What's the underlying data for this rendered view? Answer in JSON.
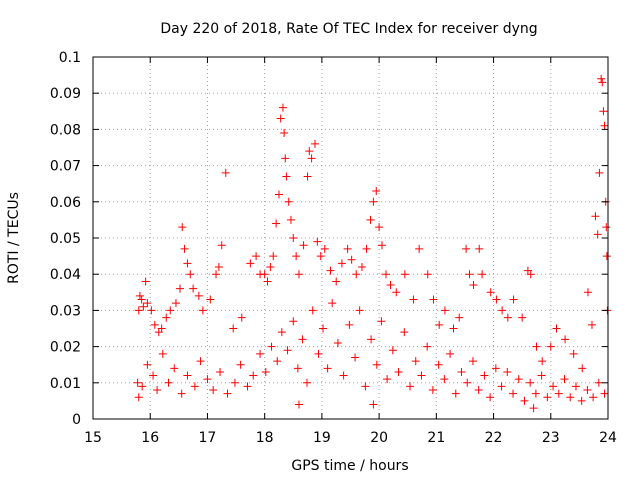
{
  "chart_data": {
    "type": "scatter",
    "title": "Day 220 of 2018, Rate Of TEC Index for receiver dyng",
    "xlabel": "GPS time / hours",
    "ylabel": "ROTI / TECUs",
    "xlim": [
      15,
      24
    ],
    "ylim": [
      0,
      0.1
    ],
    "x_ticks": [
      "15",
      "16",
      "17",
      "18",
      "19",
      "20",
      "21",
      "22",
      "23",
      "24"
    ],
    "y_ticks": [
      "0",
      "0.01",
      "0.02",
      "0.03",
      "0.04",
      "0.05",
      "0.06",
      "0.07",
      "0.08",
      "0.09",
      "0.1"
    ],
    "grid": true,
    "marker": "plus",
    "colors": {
      "series": "#ff0000",
      "grid": "#a0a0a0"
    },
    "series": [
      {
        "name": "",
        "points": [
          [
            15.78,
            0.01
          ],
          [
            15.8,
            0.03
          ],
          [
            15.82,
            0.034
          ],
          [
            15.85,
            0.033
          ],
          [
            15.88,
            0.031
          ],
          [
            15.92,
            0.038
          ],
          [
            15.95,
            0.032
          ],
          [
            16.02,
            0.03
          ],
          [
            16.08,
            0.026
          ],
          [
            16.15,
            0.024
          ],
          [
            16.2,
            0.025
          ],
          [
            16.28,
            0.028
          ],
          [
            16.35,
            0.03
          ],
          [
            16.45,
            0.032
          ],
          [
            16.52,
            0.036
          ],
          [
            16.56,
            0.053
          ],
          [
            16.6,
            0.047
          ],
          [
            16.65,
            0.043
          ],
          [
            16.7,
            0.04
          ],
          [
            16.75,
            0.036
          ],
          [
            16.85,
            0.034
          ],
          [
            16.92,
            0.03
          ],
          [
            17.05,
            0.033
          ],
          [
            17.15,
            0.04
          ],
          [
            17.2,
            0.042
          ],
          [
            17.25,
            0.048
          ],
          [
            17.32,
            0.068
          ],
          [
            17.45,
            0.025
          ],
          [
            17.6,
            0.028
          ],
          [
            17.75,
            0.043
          ],
          [
            17.85,
            0.045
          ],
          [
            17.92,
            0.04
          ],
          [
            18.0,
            0.04
          ],
          [
            18.05,
            0.038
          ],
          [
            18.1,
            0.042
          ],
          [
            18.15,
            0.045
          ],
          [
            18.2,
            0.054
          ],
          [
            18.25,
            0.062
          ],
          [
            18.28,
            0.083
          ],
          [
            18.32,
            0.086
          ],
          [
            18.34,
            0.079
          ],
          [
            18.36,
            0.072
          ],
          [
            18.38,
            0.067
          ],
          [
            18.42,
            0.06
          ],
          [
            18.46,
            0.055
          ],
          [
            18.5,
            0.05
          ],
          [
            18.55,
            0.045
          ],
          [
            18.6,
            0.04
          ],
          [
            18.68,
            0.048
          ],
          [
            18.75,
            0.067
          ],
          [
            18.78,
            0.074
          ],
          [
            18.82,
            0.072
          ],
          [
            18.88,
            0.076
          ],
          [
            18.92,
            0.049
          ],
          [
            18.98,
            0.045
          ],
          [
            19.05,
            0.047
          ],
          [
            19.15,
            0.041
          ],
          [
            19.25,
            0.038
          ],
          [
            19.35,
            0.043
          ],
          [
            19.45,
            0.047
          ],
          [
            19.52,
            0.044
          ],
          [
            19.6,
            0.04
          ],
          [
            19.7,
            0.042
          ],
          [
            19.78,
            0.047
          ],
          [
            19.85,
            0.055
          ],
          [
            19.9,
            0.06
          ],
          [
            19.95,
            0.063
          ],
          [
            20.0,
            0.053
          ],
          [
            20.05,
            0.048
          ],
          [
            20.12,
            0.04
          ],
          [
            20.2,
            0.037
          ],
          [
            20.3,
            0.035
          ],
          [
            20.45,
            0.04
          ],
          [
            20.6,
            0.033
          ],
          [
            20.7,
            0.047
          ],
          [
            20.85,
            0.04
          ],
          [
            20.95,
            0.033
          ],
          [
            21.05,
            0.026
          ],
          [
            21.15,
            0.03
          ],
          [
            21.3,
            0.025
          ],
          [
            21.4,
            0.028
          ],
          [
            21.52,
            0.047
          ],
          [
            21.58,
            0.04
          ],
          [
            21.65,
            0.037
          ],
          [
            21.75,
            0.047
          ],
          [
            21.8,
            0.04
          ],
          [
            21.95,
            0.035
          ],
          [
            22.05,
            0.033
          ],
          [
            22.15,
            0.03
          ],
          [
            22.25,
            0.028
          ],
          [
            22.35,
            0.033
          ],
          [
            22.5,
            0.028
          ],
          [
            22.6,
            0.041
          ],
          [
            22.65,
            0.04
          ],
          [
            22.75,
            0.02
          ],
          [
            22.85,
            0.016
          ],
          [
            23.0,
            0.02
          ],
          [
            23.1,
            0.025
          ],
          [
            23.25,
            0.022
          ],
          [
            23.4,
            0.018
          ],
          [
            23.55,
            0.014
          ],
          [
            23.65,
            0.035
          ],
          [
            23.72,
            0.026
          ],
          [
            23.78,
            0.056
          ],
          [
            23.82,
            0.051
          ],
          [
            23.85,
            0.068
          ],
          [
            23.88,
            0.094
          ],
          [
            23.9,
            0.093
          ],
          [
            23.92,
            0.085
          ],
          [
            23.94,
            0.081
          ],
          [
            23.96,
            0.06
          ],
          [
            23.97,
            0.053
          ],
          [
            23.98,
            0.045
          ],
          [
            23.99,
            0.03
          ],
          [
            15.8,
            0.006
          ],
          [
            15.86,
            0.009
          ],
          [
            15.95,
            0.015
          ],
          [
            16.05,
            0.012
          ],
          [
            16.12,
            0.008
          ],
          [
            16.22,
            0.018
          ],
          [
            16.32,
            0.01
          ],
          [
            16.42,
            0.014
          ],
          [
            16.55,
            0.007
          ],
          [
            16.65,
            0.012
          ],
          [
            16.78,
            0.009
          ],
          [
            16.88,
            0.016
          ],
          [
            17.0,
            0.011
          ],
          [
            17.1,
            0.008
          ],
          [
            17.22,
            0.013
          ],
          [
            17.35,
            0.007
          ],
          [
            17.48,
            0.01
          ],
          [
            17.58,
            0.015
          ],
          [
            17.7,
            0.009
          ],
          [
            17.8,
            0.012
          ],
          [
            17.92,
            0.018
          ],
          [
            18.02,
            0.013
          ],
          [
            18.12,
            0.02
          ],
          [
            18.22,
            0.016
          ],
          [
            18.3,
            0.024
          ],
          [
            18.4,
            0.019
          ],
          [
            18.5,
            0.027
          ],
          [
            18.58,
            0.014
          ],
          [
            18.66,
            0.022
          ],
          [
            18.74,
            0.01
          ],
          [
            18.84,
            0.03
          ],
          [
            18.94,
            0.018
          ],
          [
            19.02,
            0.025
          ],
          [
            19.1,
            0.014
          ],
          [
            19.18,
            0.032
          ],
          [
            19.28,
            0.021
          ],
          [
            19.38,
            0.012
          ],
          [
            19.48,
            0.026
          ],
          [
            19.58,
            0.017
          ],
          [
            19.66,
            0.03
          ],
          [
            19.76,
            0.009
          ],
          [
            19.86,
            0.022
          ],
          [
            19.96,
            0.015
          ],
          [
            20.04,
            0.027
          ],
          [
            20.14,
            0.011
          ],
          [
            20.24,
            0.019
          ],
          [
            20.34,
            0.013
          ],
          [
            20.44,
            0.024
          ],
          [
            20.54,
            0.009
          ],
          [
            20.64,
            0.016
          ],
          [
            20.74,
            0.012
          ],
          [
            20.84,
            0.02
          ],
          [
            20.94,
            0.008
          ],
          [
            21.04,
            0.015
          ],
          [
            21.14,
            0.011
          ],
          [
            21.24,
            0.018
          ],
          [
            21.34,
            0.007
          ],
          [
            21.44,
            0.013
          ],
          [
            21.54,
            0.01
          ],
          [
            21.64,
            0.016
          ],
          [
            21.74,
            0.008
          ],
          [
            21.84,
            0.012
          ],
          [
            21.94,
            0.006
          ],
          [
            22.04,
            0.014
          ],
          [
            22.14,
            0.009
          ],
          [
            22.24,
            0.013
          ],
          [
            22.34,
            0.007
          ],
          [
            22.44,
            0.011
          ],
          [
            22.54,
            0.005
          ],
          [
            22.64,
            0.01
          ],
          [
            22.74,
            0.007
          ],
          [
            22.84,
            0.012
          ],
          [
            22.94,
            0.006
          ],
          [
            23.04,
            0.009
          ],
          [
            23.14,
            0.007
          ],
          [
            23.24,
            0.011
          ],
          [
            23.34,
            0.006
          ],
          [
            23.44,
            0.009
          ],
          [
            23.54,
            0.005
          ],
          [
            23.64,
            0.008
          ],
          [
            23.74,
            0.006
          ],
          [
            23.84,
            0.01
          ],
          [
            23.94,
            0.007
          ],
          [
            19.9,
            0.004
          ],
          [
            22.7,
            0.003
          ],
          [
            18.6,
            0.004
          ]
        ]
      }
    ]
  }
}
